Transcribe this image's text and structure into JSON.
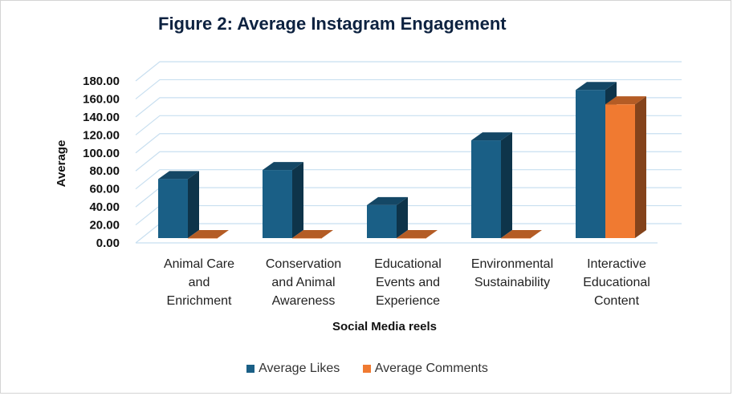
{
  "chart_data": {
    "type": "bar",
    "title": "Figure 2: Average Instagram Engagement",
    "xlabel": "Social Media reels",
    "ylabel": "Average",
    "categories": [
      [
        "Animal Care",
        "and",
        "Enrichment"
      ],
      [
        "Conservation",
        "and Animal",
        "Awareness"
      ],
      [
        "Educational",
        "Events and",
        "Experience"
      ],
      [
        "Environmental",
        "Sustainability"
      ],
      [
        "Interactive",
        "Educational",
        "Content"
      ]
    ],
    "series": [
      {
        "name": "Average Likes",
        "color": "#1a5f86",
        "values": [
          71,
          81,
          42,
          114,
          170
        ]
      },
      {
        "name": "Average Comments",
        "color": "#f07a31",
        "values": [
          0.5,
          2,
          0.5,
          3,
          154
        ]
      }
    ],
    "ylim": [
      0,
      180
    ],
    "yticks": [
      "0.00",
      "20.00",
      "40.00",
      "60.00",
      "80.00",
      "100.00",
      "120.00",
      "140.00",
      "160.00",
      "180.00"
    ],
    "grid": true,
    "legend_position": "bottom",
    "style": "3d-column"
  }
}
